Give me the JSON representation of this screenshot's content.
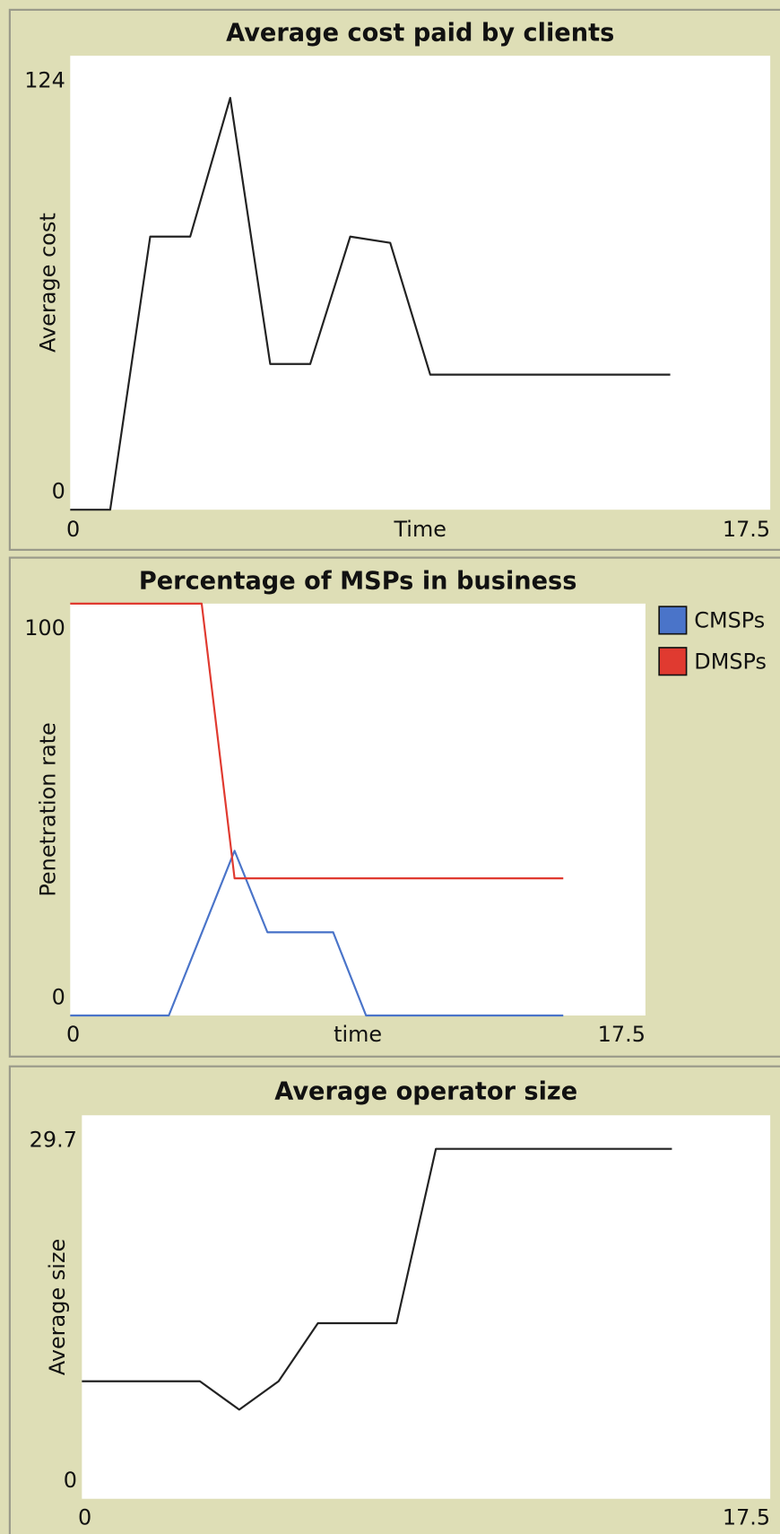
{
  "chart_data": [
    {
      "type": "line",
      "title": "Average cost paid by clients",
      "x_label": "Time",
      "y_label": "Average cost",
      "x": [
        0,
        1,
        2,
        3,
        4,
        5,
        6,
        7,
        8,
        9,
        10,
        11,
        12,
        13,
        14,
        15
      ],
      "series": [
        {
          "color": "#222222",
          "values": [
            0,
            0,
            74.6,
            74.6,
            112.5,
            39.8,
            39.8,
            74.6,
            72.9,
            36.9,
            36.9,
            36.9,
            36.9,
            36.9,
            36.9,
            36.9
          ]
        }
      ],
      "xlim": [
        0,
        17.5
      ],
      "ylim": [
        0,
        124
      ],
      "xticks": [
        0,
        17.5
      ],
      "yticks": [
        0,
        124
      ]
    },
    {
      "type": "line",
      "title": "Percentage of MSPs in business",
      "x_label": "time",
      "y_label": "Penetration rate",
      "x": [
        0,
        1,
        2,
        3,
        4,
        5,
        6,
        7,
        8,
        9,
        10,
        11,
        12,
        13,
        14,
        15
      ],
      "series": [
        {
          "name": "CMSPs",
          "color": "#4a74c9",
          "values": [
            0,
            0,
            0,
            0,
            20,
            40,
            20.2,
            20.2,
            20.2,
            0,
            0,
            0,
            0,
            0,
            0,
            0
          ]
        },
        {
          "name": "DMSPs",
          "color": "#e03a30",
          "values": [
            100,
            100,
            100,
            100,
            100,
            33.3,
            33.3,
            33.3,
            33.3,
            33.3,
            33.3,
            33.3,
            33.3,
            33.3,
            33.3,
            33.3
          ]
        }
      ],
      "xlim": [
        0,
        17.5
      ],
      "ylim": [
        0,
        100
      ],
      "xticks": [
        0,
        17.5
      ],
      "yticks": [
        0,
        100
      ],
      "legend": "right"
    },
    {
      "type": "line",
      "title": "Average operator size",
      "y_label": "Average size",
      "x": [
        0,
        1,
        2,
        3,
        4,
        5,
        6,
        7,
        8,
        9,
        10,
        11,
        12,
        13,
        14,
        15
      ],
      "series": [
        {
          "color": "#222222",
          "values": [
            9.1,
            9.1,
            9.1,
            9.1,
            6.9,
            9.1,
            13.6,
            13.6,
            13.6,
            27.1,
            27.1,
            27.1,
            27.1,
            27.1,
            27.1,
            27.1
          ]
        }
      ],
      "xlim": [
        0,
        17.5
      ],
      "ylim": [
        0,
        29.7
      ],
      "xticks": [
        0,
        17.5
      ],
      "yticks": [
        0,
        29.7
      ]
    }
  ]
}
